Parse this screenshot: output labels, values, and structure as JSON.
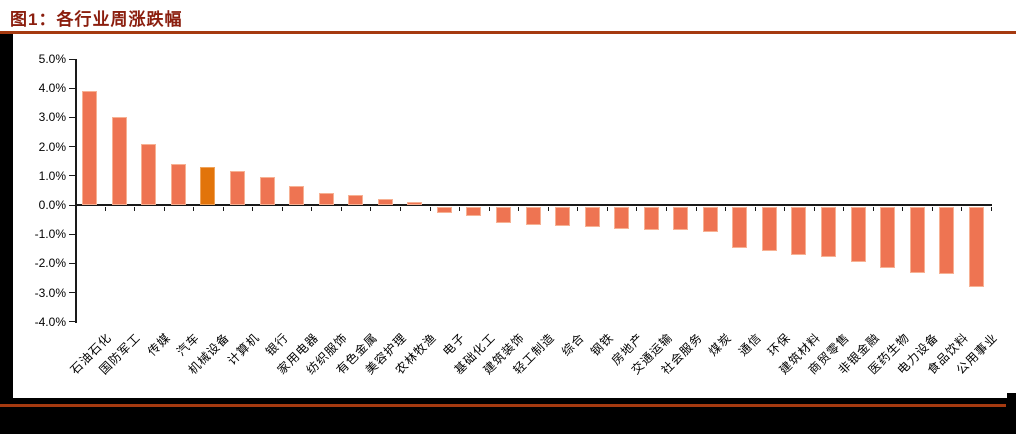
{
  "page": {
    "figure_label": "图1：各行业周涨跌幅"
  },
  "colors": {
    "title_text": "#8B1E0E",
    "divider_rule": "#A53A10",
    "page_edge_band": "#000000",
    "axis": "#1a1a1a",
    "bar_fill": "#EE7452",
    "bar_edge": "#F7B193",
    "highlight_bar_fill": "#E2740A",
    "highlight_bar_edge": "#EFA35A",
    "label_text": "#000000"
  },
  "chart_data": {
    "type": "bar",
    "title": "图1：各行业周涨跌幅",
    "xlabel": "",
    "ylabel": "",
    "unit": "%",
    "grid": false,
    "legend": false,
    "x_label_rotation": -45,
    "ylim": [
      -4.0,
      5.0
    ],
    "y_tick_values": [
      5.0,
      4.0,
      3.0,
      2.0,
      1.0,
      0.0,
      -1.0,
      -2.0,
      -3.0,
      -4.0
    ],
    "y_tick_labels": [
      "5.0%",
      "4.0%",
      "3.0%",
      "2.0%",
      "1.0%",
      "0.0%",
      "-1.0%",
      "-2.0%",
      "-3.0%",
      "-4.0%"
    ],
    "categories": [
      "石油石化",
      "国防军工",
      "传媒",
      "汽车",
      "机械设备",
      "计算机",
      "银行",
      "家用电器",
      "纺织服饰",
      "有色金属",
      "美容护理",
      "农林牧渔",
      "电子",
      "基础化工",
      "建筑装饰",
      "轻工制造",
      "综合",
      "钢铁",
      "房地产",
      "交通运输",
      "社会服务",
      "煤炭",
      "通信",
      "环保",
      "建筑材料",
      "商贸零售",
      "非银金融",
      "医药生物",
      "电力设备",
      "食品饮料",
      "公用事业"
    ],
    "values": [
      3.9,
      3.0,
      2.1,
      1.4,
      1.3,
      1.15,
      0.95,
      0.65,
      0.4,
      0.35,
      0.2,
      0.1,
      -0.2,
      -0.3,
      -0.55,
      -0.6,
      -0.65,
      -0.7,
      -0.75,
      -0.8,
      -0.8,
      -0.85,
      -1.4,
      -1.5,
      -1.65,
      -1.7,
      -1.9,
      -2.1,
      -2.25,
      -2.3,
      -2.75
    ],
    "highlight_category": "机械设备",
    "highlight_index": 4
  }
}
